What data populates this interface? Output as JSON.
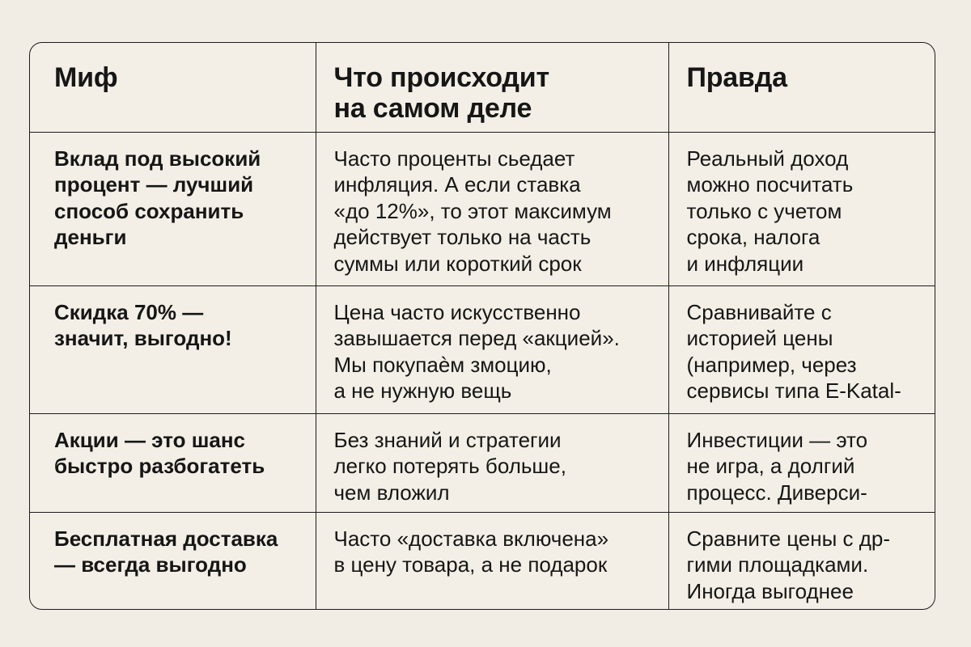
{
  "table": {
    "headers": [
      "Миф",
      "Что происходит на самом деле",
      "Правда"
    ],
    "header_lines": [
      [
        "Миф"
      ],
      [
        "Что происходит",
        "на самом деле"
      ],
      [
        "Правда"
      ]
    ],
    "rows": [
      {
        "myth": [
          "Вклад под высокий",
          "процент — лучший",
          "способ сохранить",
          "деньги"
        ],
        "reality": [
          "Часто проценты сьедает",
          "инфляция. А если ставка",
          "«до 12%», то этот максимум",
          "действует только на часть",
          "суммы или короткий срок"
        ],
        "truth": [
          "Реальный доход",
          "можно посчитать",
          "только с учетом",
          "срока, налога",
          "и инфляции"
        ]
      },
      {
        "myth": [
          "Скидка 70% —",
          "значит, выгодно!"
        ],
        "reality": [
          "Цена часто искусственно",
          "завышается перед «акцией».",
          "Мы покупаѐм змоцию,",
          "а не нужную вещь"
        ],
        "truth": [
          "Сравнивайте с",
          "историей цены",
          "(например, через",
          "сервисы типа E-Katal-"
        ]
      },
      {
        "myth": [
          "Акции — это шанс",
          "быстро разбогатеть"
        ],
        "reality": [
          "Без знаний и стратегии",
          "легко потерять больше,",
          "чем вложил"
        ],
        "truth": [
          "Инвестиции — это",
          "не игра, а долгий",
          "процесс. Диверси-"
        ]
      },
      {
        "myth": [
          "Бесплатная доставка",
          "— всегда выгодно"
        ],
        "reality": [
          "Часто «доставка включена»",
          "в цену товара, а не подарок"
        ],
        "truth": [
          "Сравните цены с др-",
          "гими площадками.",
          "Иногда выгоднее"
        ]
      }
    ]
  }
}
